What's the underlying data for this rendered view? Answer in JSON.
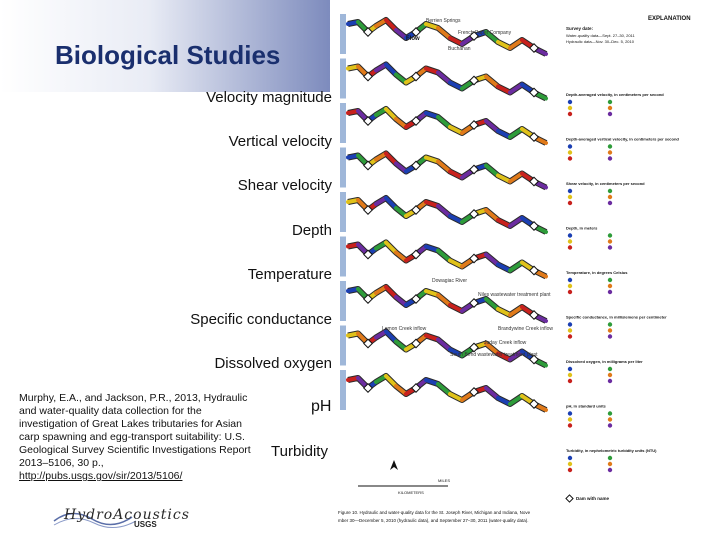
{
  "slide": {
    "title": "Biological Studies",
    "labels": [
      "Velocity magnitude",
      "Vertical velocity",
      "Shear velocity",
      "Depth",
      "Temperature",
      "Specific conductance",
      "Dissolved oxygen"
    ],
    "label_ph": "pH",
    "label_turbidity": "Turbidity",
    "citation": "Murphy, E.A., and Jackson, P.R., 2013, Hydraulic and water-quality data collection for the investigation of Great Lakes tributaries for Asian carp spawning and egg-transport suitability: U.S. Geological Survey Scientific Investigations Report 2013–5106, 30 p.,",
    "citation_link": "http://pubs.usgs.gov/sir/2013/5106/",
    "logo_text": "HydroAcoustics",
    "logo_sub": "USGS"
  },
  "figure": {
    "explanation_heading": "EXPLANATION",
    "survey_dates_label": "Survey date:",
    "wq_dates": "Water-quality data—Sept. 27–30, 2011",
    "hyd_dates": "Hydraulic data—Nov. 30–Dec. 5, 2010",
    "legend_titles": [
      "Depth-averaged velocity, in centimeters per second",
      "Depth-averaged vertical velocity, in centimeters per second",
      "Shear velocity, in centimeters per second",
      "Depth, in meters",
      "Temperature, in degrees Celsius",
      "Specific conductance, in millisiemens per centimeter",
      "Dissolved oxygen, in milligrams per liter",
      "pH, in standard units",
      "Turbidity, in nephelometric turbidity units (NTU)"
    ],
    "dam_label": "Dam with name",
    "flow_label": "Flow",
    "place_labels": [
      "Berrien Springs",
      "French Paper Company",
      "Buchanan",
      "Dowagiac River",
      "Niles wastewater treatment plant",
      "Lemon Creek inflow",
      "Brandywine Creek inflow",
      "Juday Creek inflow",
      "South Bend wastewater treatment plant"
    ],
    "caption": "Figure 10. Hydraulic and water-quality data for the St. Joseph River, Michigan and Indiana, November 30—December 5, 2010 (hydraulic data), and September 27–30, 2011 (water-quality data).",
    "scale_label": "KILOMETERS",
    "scale_label2": "MILES",
    "colors": [
      "#1b3fb3",
      "#2e9c3a",
      "#e0c21a",
      "#e07a1a",
      "#c8211d",
      "#6b2ca0",
      "#222222"
    ]
  }
}
